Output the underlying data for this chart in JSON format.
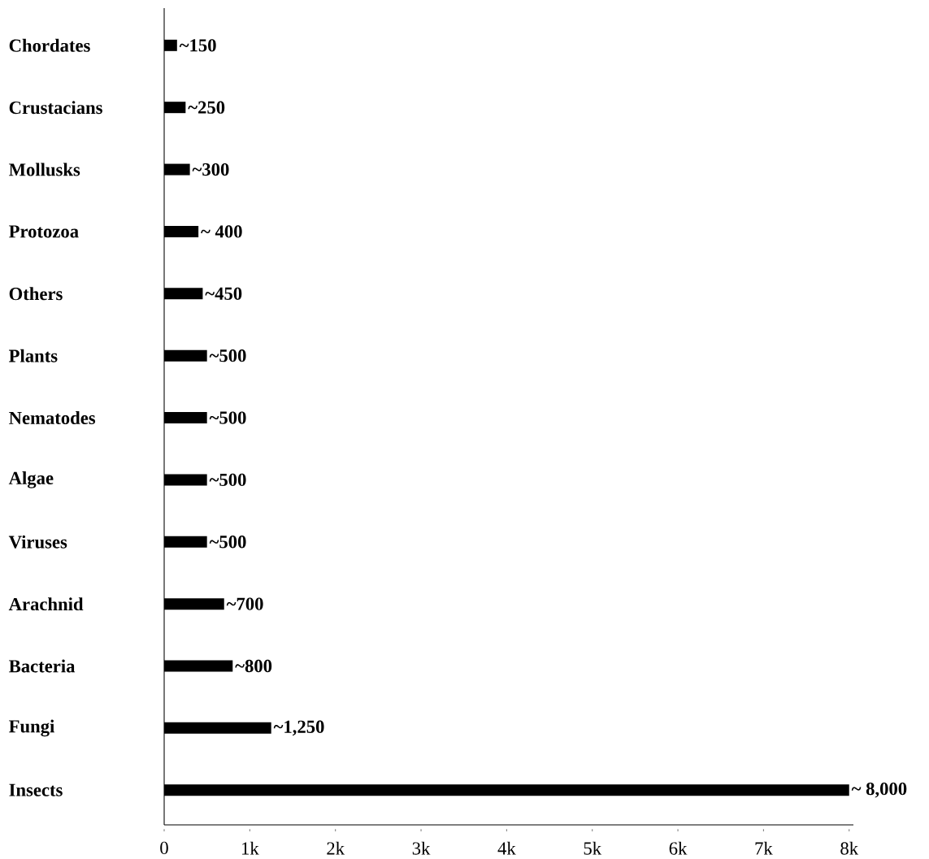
{
  "chart_data": {
    "type": "bar",
    "orientation": "horizontal",
    "categories": [
      "Chordates",
      "Crustacians",
      "Mollusks",
      "Protozoa",
      "Others",
      "Plants",
      "Nematodes",
      "Algae",
      "Viruses",
      "Arachnid",
      "Bacteria",
      "Fungi",
      "Insects"
    ],
    "values": [
      150,
      250,
      300,
      400,
      450,
      500,
      500,
      500,
      500,
      700,
      800,
      1250,
      8000
    ],
    "value_labels": [
      "~150",
      "~250",
      "~300",
      "~ 400",
      "~450",
      "~500",
      "~500",
      "~500",
      "~500",
      "~700",
      "~800",
      "~1,250",
      "~ 8,000"
    ],
    "color": "#000000",
    "xlim": [
      0,
      8050
    ],
    "xticks": [
      0,
      {
        "value": 1000,
        "label": "1k"
      },
      {
        "value": 2000,
        "label": "2k"
      },
      {
        "value": 3000,
        "label": "3k"
      },
      {
        "value": 4000,
        "label": "4k"
      },
      {
        "value": 5000,
        "label": "5k"
      },
      {
        "value": 6000,
        "label": "6k"
      },
      {
        "value": 7000,
        "label": "7k"
      },
      {
        "value": 8000,
        "label": "8k"
      }
    ],
    "grid": false
  }
}
